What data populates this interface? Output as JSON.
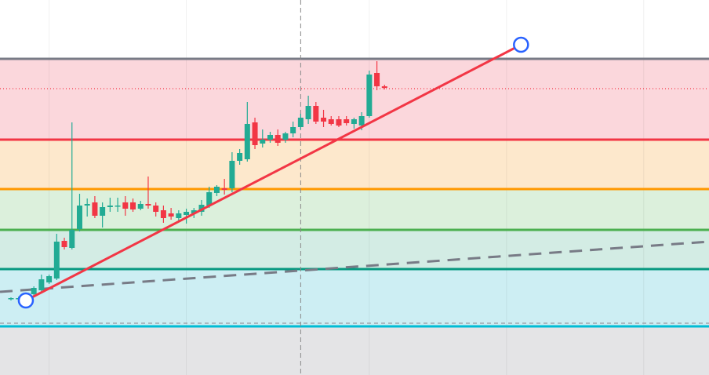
{
  "chart_data": {
    "type": "candlestick",
    "x": [
      0,
      1,
      2,
      3,
      4,
      5,
      6,
      7,
      8,
      9,
      10,
      11,
      12,
      13,
      14,
      15,
      16,
      17,
      18,
      19,
      20,
      21,
      22,
      23,
      24,
      25,
      26,
      27,
      28,
      29,
      30,
      31,
      32,
      33,
      34,
      35,
      36,
      37,
      38,
      39,
      40,
      41,
      42,
      43,
      44,
      45,
      46,
      47,
      48,
      49
    ],
    "open": [
      97,
      98,
      98,
      103,
      108,
      118,
      123,
      171,
      162,
      186,
      216,
      220,
      203,
      214,
      215,
      220,
      220,
      212,
      218,
      216,
      210,
      206,
      200,
      204,
      206,
      208,
      216,
      232,
      238,
      238,
      273,
      275,
      322,
      295,
      300,
      306,
      300,
      308,
      316,
      326,
      343,
      328,
      326,
      326,
      326,
      320,
      318,
      330,
      385,
      368
    ],
    "high": [
      99,
      100,
      100,
      113,
      128,
      128,
      180,
      175,
      322,
      231,
      225,
      228,
      220,
      226,
      226,
      228,
      225,
      222,
      253,
      220,
      216,
      213,
      210,
      212,
      213,
      223,
      240,
      242,
      250,
      284,
      288,
      348,
      328,
      313,
      310,
      313,
      310,
      323,
      333,
      356,
      348,
      338,
      330,
      330,
      330,
      328,
      335,
      388,
      400,
      370
    ],
    "low": [
      95,
      96,
      96,
      100,
      106,
      116,
      121,
      160,
      160,
      183,
      202,
      200,
      188,
      208,
      208,
      203,
      208,
      210,
      212,
      202,
      194,
      198,
      196,
      193,
      200,
      203,
      213,
      228,
      230,
      233,
      268,
      272,
      288,
      290,
      296,
      292,
      296,
      303,
      313,
      320,
      320,
      316,
      318,
      316,
      318,
      314,
      312,
      328,
      363,
      364
    ],
    "close": [
      98,
      98,
      98,
      111,
      122,
      126,
      170,
      163,
      185,
      216,
      218,
      203,
      214,
      216,
      216,
      212,
      211,
      218,
      216,
      208,
      200,
      202,
      206,
      208,
      210,
      217,
      233,
      240,
      236,
      273,
      283,
      320,
      293,
      300,
      306,
      296,
      308,
      316,
      328,
      343,
      323,
      323,
      320,
      318,
      321,
      326,
      330,
      383,
      368,
      366
    ],
    "up_color": "#22ab94",
    "down_color": "#f23645",
    "xlim": [
      -1.44,
      91.56
    ],
    "ylim": [
      0,
      478
    ],
    "levels": [
      {
        "value": 403,
        "color": "#787b86",
        "band": "#fbd7dc"
      },
      {
        "value": 300,
        "color": "#f23645",
        "band": "#fde8cc"
      },
      {
        "value": 237,
        "color": "#ff9800",
        "band": "#dcf0dc"
      },
      {
        "value": 185,
        "color": "#4caf50",
        "band": "#d3ece4"
      },
      {
        "value": 135,
        "color": "#089981",
        "band": "#cdeef3"
      },
      {
        "value": 62,
        "color": "#00bcd4",
        "band": "#e4e4e6"
      }
    ],
    "dotted_level": {
      "value": 365,
      "color": "#f23645"
    },
    "dashed_level": {
      "value": 66,
      "color": "#9598a1"
    },
    "trend_line": {
      "x": [
        1.95,
        66.9
      ],
      "y": [
        95,
        421
      ],
      "color": "#f23645"
    },
    "trend_dashed": {
      "x": [
        -1.44,
        91.56
      ],
      "y": [
        106,
        170
      ],
      "color": "#787b86"
    },
    "crosshair_x": 38,
    "grid_x": [
      5,
      23,
      47,
      65,
      83
    ]
  }
}
